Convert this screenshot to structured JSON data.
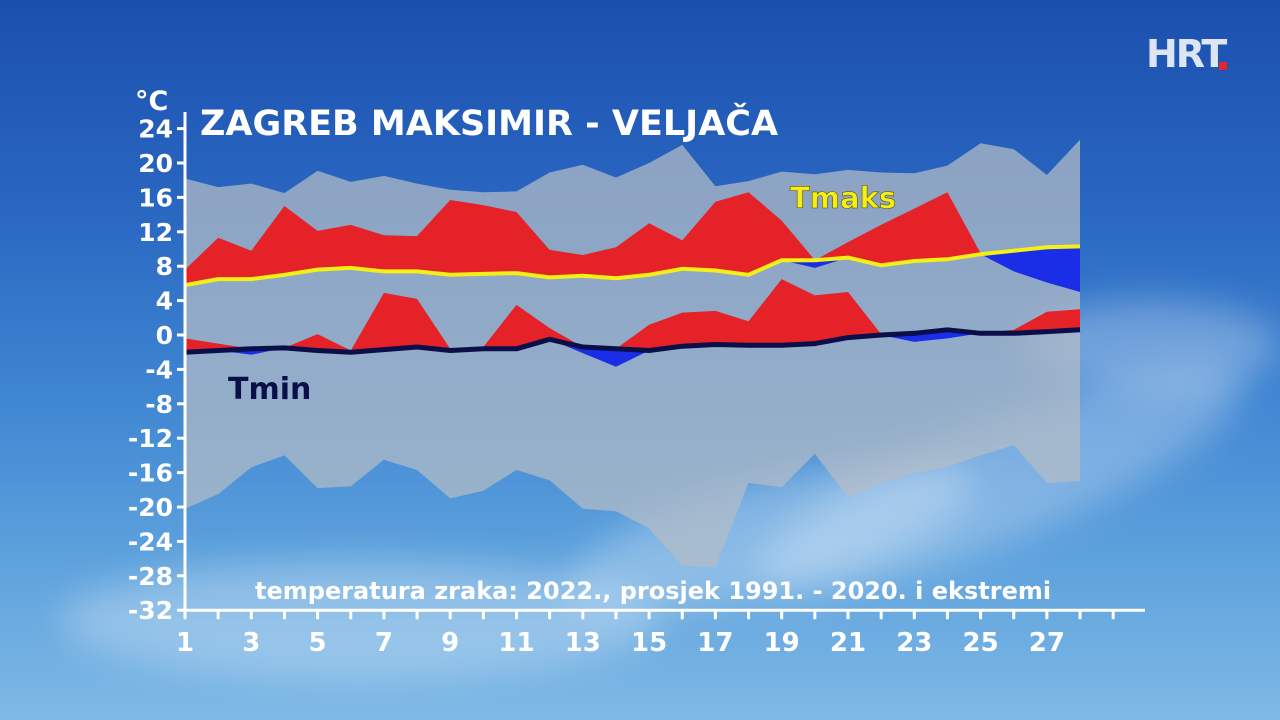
{
  "logo": "HRT",
  "chart_data": {
    "type": "area",
    "title": "ZAGREB MAKSIMIR - VELJAČA",
    "subtitle": "temperatura zraka: 2022., prosjek 1991. - 2020. i ekstremi",
    "ylabel": "°C",
    "ylim": [
      -32,
      24
    ],
    "yticks": [
      24,
      20,
      16,
      12,
      8,
      4,
      0,
      -4,
      -8,
      -12,
      -16,
      -20,
      -24,
      -28,
      -32
    ],
    "xlim": [
      1,
      28
    ],
    "xtick_labels": [
      "1",
      "3",
      "5",
      "7",
      "9",
      "11",
      "13",
      "15",
      "17",
      "19",
      "21",
      "23",
      "25",
      "27"
    ],
    "x": [
      1,
      2,
      3,
      4,
      5,
      6,
      7,
      8,
      9,
      10,
      11,
      12,
      13,
      14,
      15,
      16,
      17,
      18,
      19,
      20,
      21,
      22,
      23,
      24,
      25,
      26,
      27,
      28
    ],
    "series": [
      {
        "name": "Tmaks",
        "role": "mean_max",
        "color": "#f4ef16",
        "values": [
          5.8,
          6.5,
          6.5,
          7.0,
          7.6,
          7.8,
          7.4,
          7.4,
          7.0,
          7.1,
          7.2,
          6.7,
          6.9,
          6.6,
          7.0,
          7.7,
          7.5,
          7.0,
          8.7,
          8.7,
          9.0,
          8.1,
          8.6,
          8.8,
          9.4,
          9.8,
          10.2,
          10.3
        ]
      },
      {
        "name": "Tmin",
        "role": "mean_min",
        "color": "#0a0f4a",
        "values": [
          -2.0,
          -1.8,
          -1.6,
          -1.5,
          -1.8,
          -2.0,
          -1.7,
          -1.4,
          -1.8,
          -1.6,
          -1.6,
          -0.5,
          -1.4,
          -1.6,
          -1.8,
          -1.3,
          -1.1,
          -1.2,
          -1.2,
          -1.0,
          -0.3,
          0.0,
          0.2,
          0.6,
          0.2,
          0.2,
          0.4,
          0.6
        ]
      },
      {
        "name": "tmax_2022",
        "values": [
          7.6,
          11.3,
          9.8,
          15.0,
          12.1,
          12.8,
          11.6,
          11.5,
          15.7,
          15.1,
          14.3,
          9.9,
          9.3,
          10.2,
          13.0,
          11.0,
          15.5,
          16.6,
          13.3,
          7.8,
          10.8,
          12.8,
          14.7,
          16.6,
          9.5,
          7.4,
          6.1,
          5.0
        ]
      },
      {
        "name": "tmin_2022",
        "values": [
          -0.4,
          -1.0,
          -2.3,
          -1.5,
          0.1,
          -1.8,
          4.9,
          4.2,
          -1.6,
          -1.4,
          3.5,
          0.8,
          -2.1,
          -3.7,
          1.2,
          2.6,
          2.8,
          1.6,
          6.5,
          4.6,
          5.0,
          0.1,
          -0.8,
          -0.4,
          0.2,
          0.6,
          2.7,
          3.0
        ]
      },
      {
        "name": "abs_max",
        "values": [
          18.2,
          17.2,
          17.6,
          16.5,
          19.1,
          17.8,
          18.5,
          17.6,
          16.9,
          16.6,
          16.7,
          18.9,
          19.8,
          18.3,
          20.0,
          22.1,
          17.3,
          17.9,
          19.0,
          18.7,
          19.2,
          18.9,
          18.8,
          19.7,
          22.3,
          21.6,
          18.6,
          22.7
        ]
      },
      {
        "name": "abs_min",
        "values": [
          -20.2,
          -18.5,
          -15.4,
          -14.0,
          -17.8,
          -17.6,
          -14.5,
          -15.7,
          -19.0,
          -18.1,
          -15.7,
          -16.9,
          -20.2,
          -20.5,
          -22.5,
          -26.8,
          -27.0,
          -17.2,
          -17.7,
          -13.8,
          -18.9,
          -17.2,
          -16.0,
          -15.3,
          -14.0,
          -12.8,
          -17.2,
          -17.0
        ]
      }
    ],
    "fill_colors": {
      "warmer": "#e52227",
      "colder": "#1a2ee8",
      "range": "#b4bcc6"
    },
    "series_labels": {
      "tmax": "Tmaks",
      "tmin": "Tmin"
    },
    "grid": false
  }
}
